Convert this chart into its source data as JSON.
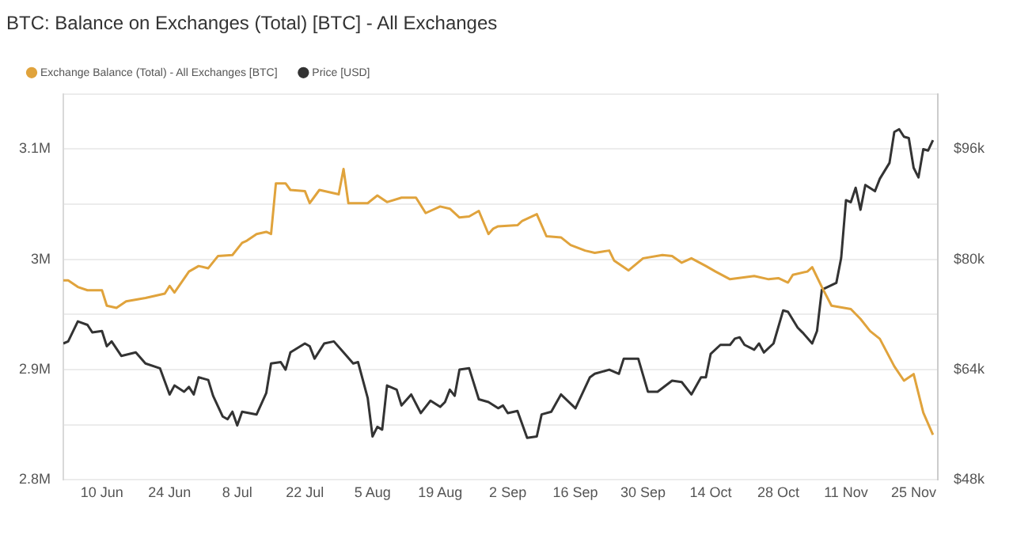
{
  "chart_data": {
    "type": "line",
    "title": "BTC: Balance on Exchanges (Total) [BTC] - All Exchanges",
    "series": [
      {
        "name": "Exchange Balance (Total) - All Exchanges [BTC]",
        "color": "#e0a33c",
        "axis": "y",
        "x": [
          "--06-02",
          "--06-03",
          "--06-05",
          "--06-07",
          "--06-10",
          "--06-11",
          "--06-13",
          "--06-15",
          "--06-19",
          "--06-23",
          "--06-24",
          "--06-25",
          "--06-28",
          "--06-30",
          "--07-02",
          "--07-04",
          "--07-07",
          "--07-09",
          "--07-10",
          "--07-12",
          "--07-14",
          "--07-15",
          "--07-16",
          "--07-18",
          "--07-19",
          "--07-22",
          "--07-23",
          "--07-25",
          "--07-29",
          "--07-30",
          "--07-31",
          "--08-04",
          "--08-06",
          "--08-08",
          "--08-11",
          "--08-14",
          "--08-16",
          "--08-19",
          "--08-21",
          "--08-23",
          "--08-25",
          "--08-27",
          "--08-29",
          "--08-30",
          "--08-31",
          "--09-04",
          "--09-05",
          "--09-08",
          "--09-10",
          "--09-13",
          "--09-15",
          "--09-18",
          "--09-20",
          "--09-23",
          "--09-24",
          "--09-27",
          "--09-30",
          "--10-04",
          "--10-06",
          "--10-08",
          "--10-10",
          "--10-13",
          "--10-15",
          "--10-18",
          "--10-23",
          "--10-26",
          "--10-28",
          "--10-30",
          "--10-31",
          "--11-03",
          "--11-04",
          "--11-06",
          "--11-08",
          "--11-12",
          "--11-14",
          "--11-16",
          "--11-18",
          "--11-21",
          "--11-23",
          "--11-25",
          "--11-27",
          "--11-29"
        ],
        "values": [
          2981000,
          2981000,
          2975000,
          2972000,
          2972000,
          2958000,
          2956000,
          2962000,
          2965000,
          2969000,
          2976000,
          2970000,
          2989000,
          2994000,
          2992000,
          3003000,
          3004000,
          3015000,
          3017000,
          3023000,
          3025000,
          3023000,
          3069000,
          3069000,
          3063000,
          3062000,
          3051000,
          3063000,
          3059000,
          3082000,
          3051000,
          3051000,
          3058000,
          3052000,
          3056000,
          3056000,
          3042000,
          3048000,
          3046000,
          3038000,
          3039000,
          3044000,
          3023000,
          3028000,
          3030000,
          3031000,
          3035000,
          3041000,
          3021000,
          3020000,
          3013000,
          3008000,
          3006000,
          3008000,
          2999000,
          2990000,
          3001000,
          3004000,
          3003000,
          2997000,
          3001000,
          2994000,
          2989000,
          2982000,
          2985000,
          2982000,
          2983000,
          2979000,
          2986000,
          2989000,
          2993000,
          2975000,
          2958000,
          2955000,
          2946000,
          2935000,
          2928000,
          2903000,
          2890000,
          2896000,
          2861000,
          2841000
        ]
      },
      {
        "name": "Price [USD]",
        "color": "#333333",
        "axis": "y2",
        "x": [
          "--06-02",
          "--06-03",
          "--06-05",
          "--06-07",
          "--06-08",
          "--06-10",
          "--06-11",
          "--06-12",
          "--06-14",
          "--06-17",
          "--06-19",
          "--06-22",
          "--06-24",
          "--06-25",
          "--06-27",
          "--06-28",
          "--06-29",
          "--06-30",
          "--07-02",
          "--07-03",
          "--07-05",
          "--07-06",
          "--07-07",
          "--07-08",
          "--07-09",
          "--07-12",
          "--07-14",
          "--07-15",
          "--07-17",
          "--07-18",
          "--07-19",
          "--07-22",
          "--07-23",
          "--07-24",
          "--07-26",
          "--07-28",
          "--07-30",
          "--08-01",
          "--08-02",
          "--08-04",
          "--08-05",
          "--08-06",
          "--08-07",
          "--08-08",
          "--08-10",
          "--08-11",
          "--08-13",
          "--08-15",
          "--08-17",
          "--08-19",
          "--08-20",
          "--08-21",
          "--08-22",
          "--08-23",
          "--08-25",
          "--08-27",
          "--08-29",
          "--08-31",
          "--09-01",
          "--09-02",
          "--09-04",
          "--09-06",
          "--09-08",
          "--09-09",
          "--09-11",
          "--09-13",
          "--09-16",
          "--09-19",
          "--09-20",
          "--09-23",
          "--09-25",
          "--09-26",
          "--09-29",
          "--10-01",
          "--10-03",
          "--10-06",
          "--10-08",
          "--10-10",
          "--10-12",
          "--10-13",
          "--10-14",
          "--10-16",
          "--10-18",
          "--10-19",
          "--10-20",
          "--10-21",
          "--10-23",
          "--10-24",
          "--10-25",
          "--10-27",
          "--10-29",
          "--10-30",
          "--11-01",
          "--11-02",
          "--11-04",
          "--11-05",
          "--11-06",
          "--11-09",
          "--11-10",
          "--11-11",
          "--11-12",
          "--11-13",
          "--11-14",
          "--11-15",
          "--11-17",
          "--11-18",
          "--11-20",
          "--11-21",
          "--11-22",
          "--11-23",
          "--11-24",
          "--11-25",
          "--11-26",
          "--11-27",
          "--11-28",
          "--11-29"
        ],
        "values": [
          67800,
          68100,
          71000,
          70500,
          69400,
          69600,
          67400,
          68100,
          66000,
          66500,
          64900,
          64200,
          60400,
          61700,
          60800,
          61500,
          60400,
          62900,
          62500,
          60200,
          57200,
          56800,
          57900,
          55900,
          57900,
          57500,
          60600,
          64900,
          65100,
          64000,
          66500,
          67800,
          67400,
          65600,
          67800,
          68100,
          66500,
          64900,
          65100,
          59900,
          54300,
          55700,
          55300,
          61700,
          61100,
          58800,
          60400,
          57700,
          59500,
          58600,
          59300,
          61100,
          60200,
          64000,
          64200,
          59700,
          59300,
          58400,
          58800,
          57700,
          58000,
          54100,
          54300,
          57500,
          57900,
          60400,
          58400,
          62900,
          63400,
          64000,
          63400,
          65600,
          65600,
          60800,
          60800,
          62400,
          62200,
          60400,
          62900,
          62900,
          66300,
          67600,
          67600,
          68500,
          68700,
          67600,
          66900,
          67800,
          66500,
          67800,
          72600,
          72400,
          70100,
          69400,
          67800,
          69600,
          75600,
          76600,
          80200,
          88600,
          88300,
          90400,
          87200,
          90800,
          89900,
          91700,
          94000,
          98500,
          98900,
          97800,
          97600,
          93300,
          91900,
          96000,
          95800,
          97300
        ]
      }
    ],
    "xlim": [
      "--06-02",
      "--11-30"
    ],
    "xticks": [
      {
        "value": "--06-10",
        "label": "10 Jun"
      },
      {
        "value": "--06-24",
        "label": "24 Jun"
      },
      {
        "value": "--07-08",
        "label": "8 Jul"
      },
      {
        "value": "--07-22",
        "label": "22 Jul"
      },
      {
        "value": "--08-05",
        "label": "5 Aug"
      },
      {
        "value": "--08-19",
        "label": "19 Aug"
      },
      {
        "value": "--09-02",
        "label": "2 Sep"
      },
      {
        "value": "--09-16",
        "label": "16 Sep"
      },
      {
        "value": "--09-30",
        "label": "30 Sep"
      },
      {
        "value": "--10-14",
        "label": "14 Oct"
      },
      {
        "value": "--10-28",
        "label": "28 Oct"
      },
      {
        "value": "--11-11",
        "label": "11 Nov"
      },
      {
        "value": "--11-25",
        "label": "25 Nov"
      }
    ],
    "ylim": [
      2800000,
      3150000
    ],
    "yticks": [
      {
        "value": 2800000,
        "label": "2.8M"
      },
      {
        "value": 2850000,
        "label": null
      },
      {
        "value": 2900000,
        "label": "2.9M"
      },
      {
        "value": 2950000,
        "label": null
      },
      {
        "value": 3000000,
        "label": "3M"
      },
      {
        "value": 3050000,
        "label": null
      },
      {
        "value": 3100000,
        "label": "3.1M"
      },
      {
        "value": 3150000,
        "label": null
      }
    ],
    "y2lim": [
      48000,
      104000
    ],
    "y2ticks": [
      {
        "value": 48000,
        "label": "$48k"
      },
      {
        "value": 64000,
        "label": "$64k"
      },
      {
        "value": 80000,
        "label": "$80k"
      },
      {
        "value": 96000,
        "label": "$96k"
      }
    ],
    "grid": "y",
    "legend": "top left",
    "marker": "none",
    "line_style": "solid"
  }
}
